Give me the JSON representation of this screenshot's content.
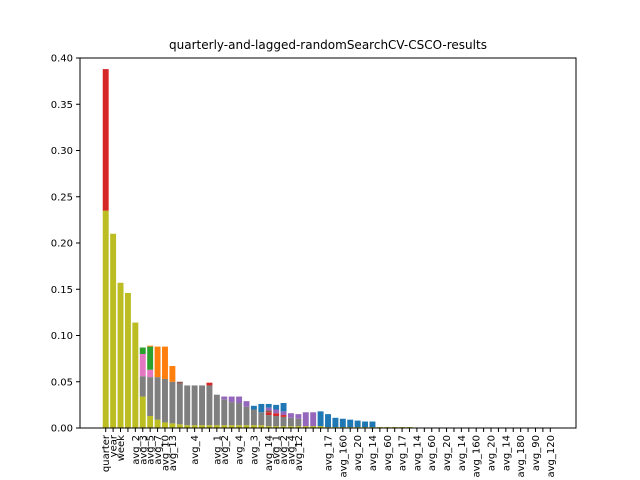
{
  "chart_data": {
    "type": "bar",
    "stacked": true,
    "title": "quarterly-and-lagged-randomSearchCV-CSCO-results",
    "xlabel": "",
    "ylabel": "",
    "ylim": [
      0,
      0.4
    ],
    "yticks": [
      "0.00",
      "0.05",
      "0.10",
      "0.15",
      "0.20",
      "0.25",
      "0.30",
      "0.35",
      "0.40"
    ],
    "ytick_values": [
      0,
      0.05,
      0.1,
      0.15,
      0.2,
      0.25,
      0.3,
      0.35,
      0.4
    ],
    "grid": false,
    "legend": "none",
    "categories": [
      "quarter",
      "year",
      "week",
      "",
      "avg_2",
      "avg_3",
      "avg_5",
      "avg_7",
      "avg_10",
      "avg_13",
      "",
      "",
      "avg_4",
      "",
      "",
      "avg_1",
      "avg_2",
      "",
      "avg_4",
      "",
      "avg_3",
      "",
      "avg_14",
      "avg_1",
      "avg_2",
      "avg_4",
      "avg_12",
      "",
      "",
      "",
      "avg_17",
      "",
      "avg_160",
      "",
      "avg_20",
      "",
      "avg_14",
      "",
      "avg_60",
      "",
      "avg_17",
      "",
      "avg_14",
      "",
      "avg_60",
      "",
      "avg_20",
      "",
      "avg_14",
      "",
      "avg_160",
      "",
      "avg_20",
      "",
      "avg_14",
      "",
      "avg_180",
      "",
      "avg_90",
      "",
      "avg_120"
    ],
    "series": [
      {
        "color": "#bcbd22",
        "values": [
          0.235,
          0.21,
          0.157,
          0.146,
          0.114,
          0.034,
          0.013,
          0.009,
          0.006,
          0.005,
          0.004,
          0.003,
          0.003,
          0.003,
          0.003,
          0.003,
          0.003,
          0.003,
          0.003,
          0.003,
          0.003,
          0.003,
          0.002,
          0.002,
          0.002,
          0.002,
          0.002,
          0.002,
          0.002,
          0.002,
          0.001,
          0.001,
          0.001,
          0.001,
          0.001,
          0.001,
          0.001,
          0.001,
          0.001,
          0.001,
          0.001,
          0.001,
          0.0005,
          0.0005,
          0.0005,
          0.0005,
          0.0005,
          0.0005,
          0.0005,
          0.0005,
          0.0005,
          0.0005,
          0.0005,
          0.0005,
          0.0005,
          0.0005,
          0.0005,
          0.0005,
          0.0005,
          0.0005,
          0.0005
        ]
      },
      {
        "color": "#7f7f7f",
        "values": [
          0,
          0,
          0,
          0,
          0,
          0.022,
          0.042,
          0.046,
          0.047,
          0.045,
          0.044,
          0.043,
          0.043,
          0.043,
          0.043,
          0.033,
          0.028,
          0.025,
          0.024,
          0.02,
          0.017,
          0.014,
          0.012,
          0.011,
          0.01,
          0.009,
          0.008,
          0,
          0,
          0,
          0,
          0,
          0,
          0,
          0,
          0,
          0,
          0,
          0,
          0,
          0,
          0,
          0,
          0,
          0,
          0,
          0,
          0,
          0,
          0,
          0,
          0,
          0,
          0,
          0,
          0,
          0,
          0,
          0,
          0,
          0
        ]
      },
      {
        "color": "#d62728",
        "values": [
          0.153,
          0,
          0,
          0,
          0,
          0,
          0,
          0,
          0,
          0,
          0,
          0,
          0,
          0,
          0.003,
          0,
          0,
          0,
          0,
          0,
          0,
          0,
          0.003,
          0.003,
          0.002,
          0,
          0,
          0,
          0,
          0,
          0,
          0,
          0,
          0,
          0,
          0,
          0,
          0,
          0,
          0,
          0,
          0,
          0,
          0,
          0,
          0,
          0,
          0,
          0,
          0,
          0,
          0,
          0,
          0,
          0,
          0,
          0,
          0,
          0,
          0,
          0
        ]
      },
      {
        "color": "#e377c2",
        "values": [
          0,
          0,
          0,
          0,
          0,
          0.024,
          0.008,
          0,
          0,
          0,
          0,
          0,
          0,
          0,
          0,
          0,
          0,
          0,
          0,
          0,
          0,
          0,
          0,
          0,
          0,
          0,
          0,
          0,
          0,
          0,
          0,
          0,
          0,
          0,
          0,
          0,
          0,
          0,
          0,
          0,
          0,
          0,
          0,
          0,
          0,
          0,
          0,
          0,
          0,
          0,
          0,
          0,
          0,
          0,
          0,
          0,
          0,
          0,
          0,
          0,
          0
        ]
      },
      {
        "color": "#2ca02c",
        "values": [
          0,
          0,
          0,
          0,
          0,
          0.007,
          0.025,
          0,
          0,
          0,
          0,
          0,
          0,
          0,
          0,
          0,
          0,
          0,
          0,
          0,
          0,
          0,
          0,
          0,
          0,
          0,
          0,
          0,
          0,
          0,
          0,
          0,
          0,
          0,
          0,
          0,
          0,
          0,
          0,
          0,
          0,
          0,
          0,
          0,
          0,
          0,
          0,
          0,
          0,
          0,
          0,
          0,
          0,
          0,
          0,
          0,
          0,
          0,
          0,
          0,
          0
        ]
      },
      {
        "color": "#ff7f0e",
        "values": [
          0,
          0,
          0,
          0,
          0,
          0,
          0.001,
          0.033,
          0.035,
          0.017,
          0,
          0,
          0,
          0,
          0,
          0,
          0,
          0,
          0,
          0,
          0,
          0,
          0,
          0,
          0,
          0,
          0,
          0,
          0,
          0,
          0,
          0,
          0,
          0,
          0,
          0,
          0,
          0,
          0,
          0,
          0,
          0,
          0,
          0,
          0,
          0,
          0,
          0,
          0,
          0,
          0,
          0,
          0,
          0,
          0,
          0,
          0,
          0,
          0,
          0,
          0
        ]
      },
      {
        "color": "#8c564b",
        "values": [
          0,
          0,
          0,
          0,
          0,
          0,
          0,
          0,
          0,
          0,
          0.002,
          0,
          0,
          0,
          0,
          0,
          0,
          0,
          0,
          0,
          0,
          0,
          0.002,
          0,
          0,
          0,
          0,
          0,
          0,
          0,
          0,
          0,
          0,
          0,
          0,
          0,
          0,
          0,
          0,
          0,
          0,
          0,
          0,
          0,
          0,
          0,
          0,
          0,
          0,
          0,
          0,
          0,
          0,
          0,
          0,
          0,
          0,
          0,
          0,
          0,
          0
        ]
      },
      {
        "color": "#9467bd",
        "values": [
          0,
          0,
          0,
          0,
          0,
          0,
          0,
          0,
          0,
          0,
          0,
          0,
          0,
          0,
          0,
          0,
          0.003,
          0.006,
          0.007,
          0.006,
          0,
          0,
          0.003,
          0.004,
          0.004,
          0.005,
          0.005,
          0.015,
          0.015,
          0,
          0,
          0,
          0,
          0,
          0,
          0,
          0,
          0,
          0,
          0,
          0,
          0,
          0,
          0,
          0,
          0,
          0,
          0,
          0,
          0,
          0,
          0,
          0,
          0,
          0,
          0,
          0,
          0,
          0,
          0,
          0
        ]
      },
      {
        "color": "#1f77b4",
        "values": [
          0,
          0,
          0,
          0,
          0,
          0,
          0,
          0,
          0,
          0,
          0,
          0,
          0,
          0,
          0,
          0,
          0,
          0,
          0,
          0,
          0.004,
          0.009,
          0.004,
          0.005,
          0.009,
          0,
          0,
          0,
          0,
          0.016,
          0.014,
          0.01,
          0.009,
          0.008,
          0.007,
          0.006,
          0.006,
          0,
          0,
          0,
          0,
          0,
          0,
          0,
          0,
          0,
          0,
          0,
          0,
          0,
          0,
          0,
          0,
          0,
          0,
          0,
          0,
          0,
          0,
          0,
          0
        ]
      }
    ]
  }
}
